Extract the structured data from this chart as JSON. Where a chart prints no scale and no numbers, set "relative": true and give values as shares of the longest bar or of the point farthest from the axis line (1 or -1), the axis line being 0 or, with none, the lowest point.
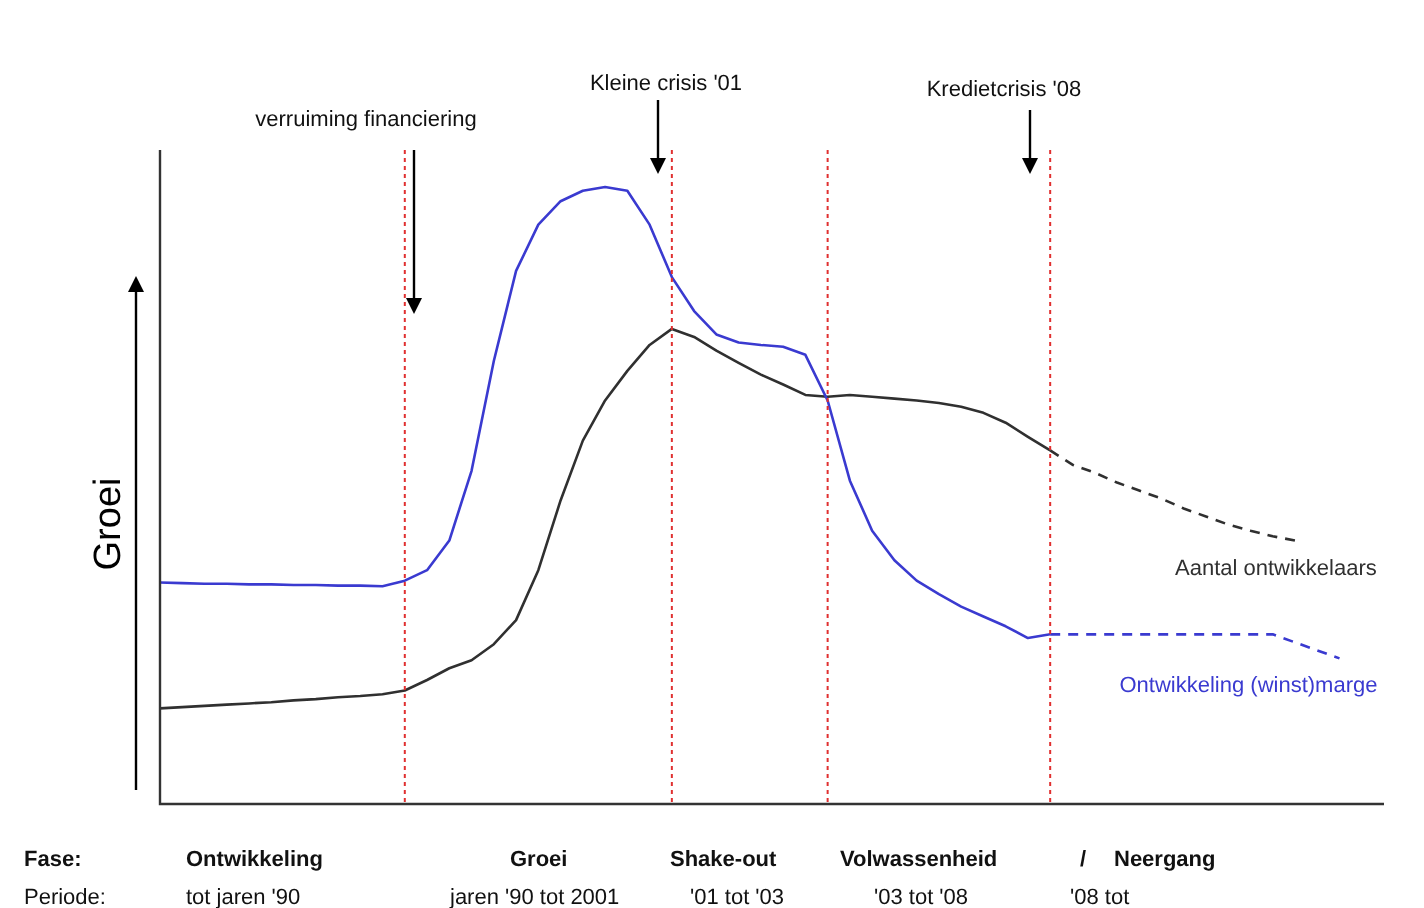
{
  "chart_data": {
    "type": "line",
    "relative": true,
    "grid": "x",
    "ylabel": "Groei",
    "legend": false,
    "marker": "none",
    "categories": [
      null,
      null,
      null,
      null,
      null,
      null,
      null,
      null,
      null,
      null,
      null,
      null,
      null,
      null,
      null,
      null,
      null,
      null,
      null,
      null,
      null,
      null,
      null,
      null,
      null,
      null,
      null,
      null,
      null,
      null,
      null,
      null,
      null,
      null,
      null,
      null,
      null,
      null,
      null,
      null,
      null,
      null,
      null,
      null,
      null,
      null,
      null,
      null,
      null,
      null,
      null,
      null,
      null,
      null,
      null,
      null
    ],
    "series": [
      {
        "color": "#3a3ad0",
        "line_style": "solid",
        "values": [
          0.359,
          0.358,
          0.357,
          0.357,
          0.356,
          0.356,
          0.355,
          0.355,
          0.354,
          0.354,
          0.353,
          0.362,
          0.379,
          0.427,
          0.54,
          0.718,
          0.864,
          0.939,
          0.977,
          0.994,
          1,
          0.994,
          0.939,
          0.854,
          0.799,
          0.761,
          0.748,
          0.744,
          0.741,
          0.728,
          0.654,
          0.524,
          0.443,
          0.395,
          0.362,
          0.34,
          0.32,
          0.304,
          0.288,
          0.269,
          0.275,
          null,
          null,
          null,
          null,
          null,
          null,
          null,
          null,
          null,
          null,
          null,
          null,
          null,
          null,
          null
        ]
      },
      {
        "name": "Ontwikkeling (winst)marge",
        "color": "#3a3ad0",
        "line_style": "dashed",
        "values": [
          null,
          null,
          null,
          null,
          null,
          null,
          null,
          null,
          null,
          null,
          null,
          null,
          null,
          null,
          null,
          null,
          null,
          null,
          null,
          null,
          null,
          null,
          null,
          null,
          null,
          null,
          null,
          null,
          null,
          null,
          null,
          null,
          null,
          null,
          null,
          null,
          null,
          null,
          null,
          null,
          0.275,
          0.275,
          0.275,
          0.275,
          0.275,
          0.275,
          0.275,
          0.275,
          0.275,
          0.275,
          0.275,
          0.262,
          0.249,
          0.236,
          null,
          null
        ]
      },
      {
        "color": "#303030",
        "line_style": "solid",
        "values": [
          0.155,
          0.157,
          0.159,
          0.161,
          0.163,
          0.165,
          0.168,
          0.17,
          0.173,
          0.175,
          0.178,
          0.184,
          0.201,
          0.22,
          0.233,
          0.259,
          0.298,
          0.379,
          0.492,
          0.589,
          0.654,
          0.702,
          0.744,
          0.77,
          0.757,
          0.735,
          0.715,
          0.696,
          0.68,
          0.663,
          0.66,
          0.663,
          0.66,
          0.657,
          0.654,
          0.65,
          0.644,
          0.634,
          0.618,
          0.595,
          0.573,
          null,
          null,
          null,
          null,
          null,
          null,
          null,
          null,
          null,
          null,
          null,
          null,
          null,
          null,
          null
        ]
      },
      {
        "name": "Aantal ontwikkelaars",
        "color": "#303030",
        "line_style": "dashed",
        "values": [
          null,
          null,
          null,
          null,
          null,
          null,
          null,
          null,
          null,
          null,
          null,
          null,
          null,
          null,
          null,
          null,
          null,
          null,
          null,
          null,
          null,
          null,
          null,
          null,
          null,
          null,
          null,
          null,
          null,
          null,
          null,
          null,
          null,
          null,
          null,
          null,
          null,
          null,
          null,
          null,
          0.573,
          0.55,
          0.537,
          0.521,
          0.508,
          0.495,
          0.479,
          0.466,
          0.453,
          0.443,
          0.434,
          0.427,
          null,
          null,
          null,
          null
        ]
      }
    ],
    "annotations": [
      "verruiming financiering",
      "Kleine crisis '01",
      "Kredietcrisis '08",
      "Fase:",
      "Ontwikkeling",
      "Groei",
      "Shake-out",
      "Volwassenheid",
      "/",
      "Neergang",
      "Periode:",
      "tot jaren '90",
      "jaren '90 tot 2001",
      "'01 tot '03",
      "'03 tot '08",
      "'08 tot"
    ]
  }
}
